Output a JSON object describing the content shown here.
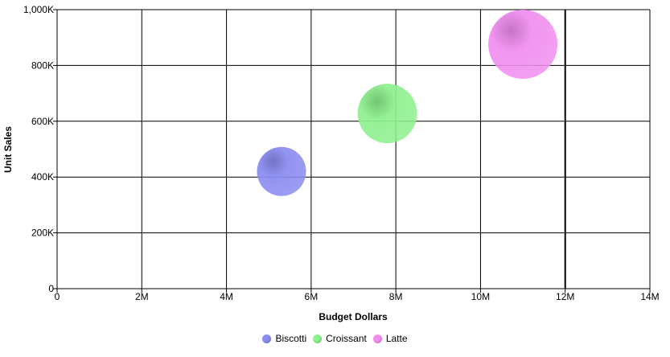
{
  "chart_data": {
    "type": "scatter",
    "subtype": "bubble",
    "xlabel": "Budget Dollars",
    "ylabel": "Unit Sales",
    "xlim": [
      0,
      14000000
    ],
    "ylim": [
      0,
      1000000
    ],
    "x_ticks": [
      "0",
      "2M",
      "4M",
      "6M",
      "8M",
      "10M",
      "12M",
      "14M"
    ],
    "y_ticks": [
      "0",
      "200K",
      "400K",
      "600K",
      "800K",
      "1,000K"
    ],
    "grid": true,
    "legend_position": "bottom",
    "series": [
      {
        "name": "Biscotti",
        "x": 5300000,
        "y": 420000,
        "size": 0.71,
        "color": "#8a8cf0"
      },
      {
        "name": "Croissant",
        "x": 7800000,
        "y": 628000,
        "size": 0.86,
        "color": "#8ef08e"
      },
      {
        "name": "Latte",
        "x": 11000000,
        "y": 876000,
        "size": 1.0,
        "color": "#f08ef0"
      }
    ]
  }
}
